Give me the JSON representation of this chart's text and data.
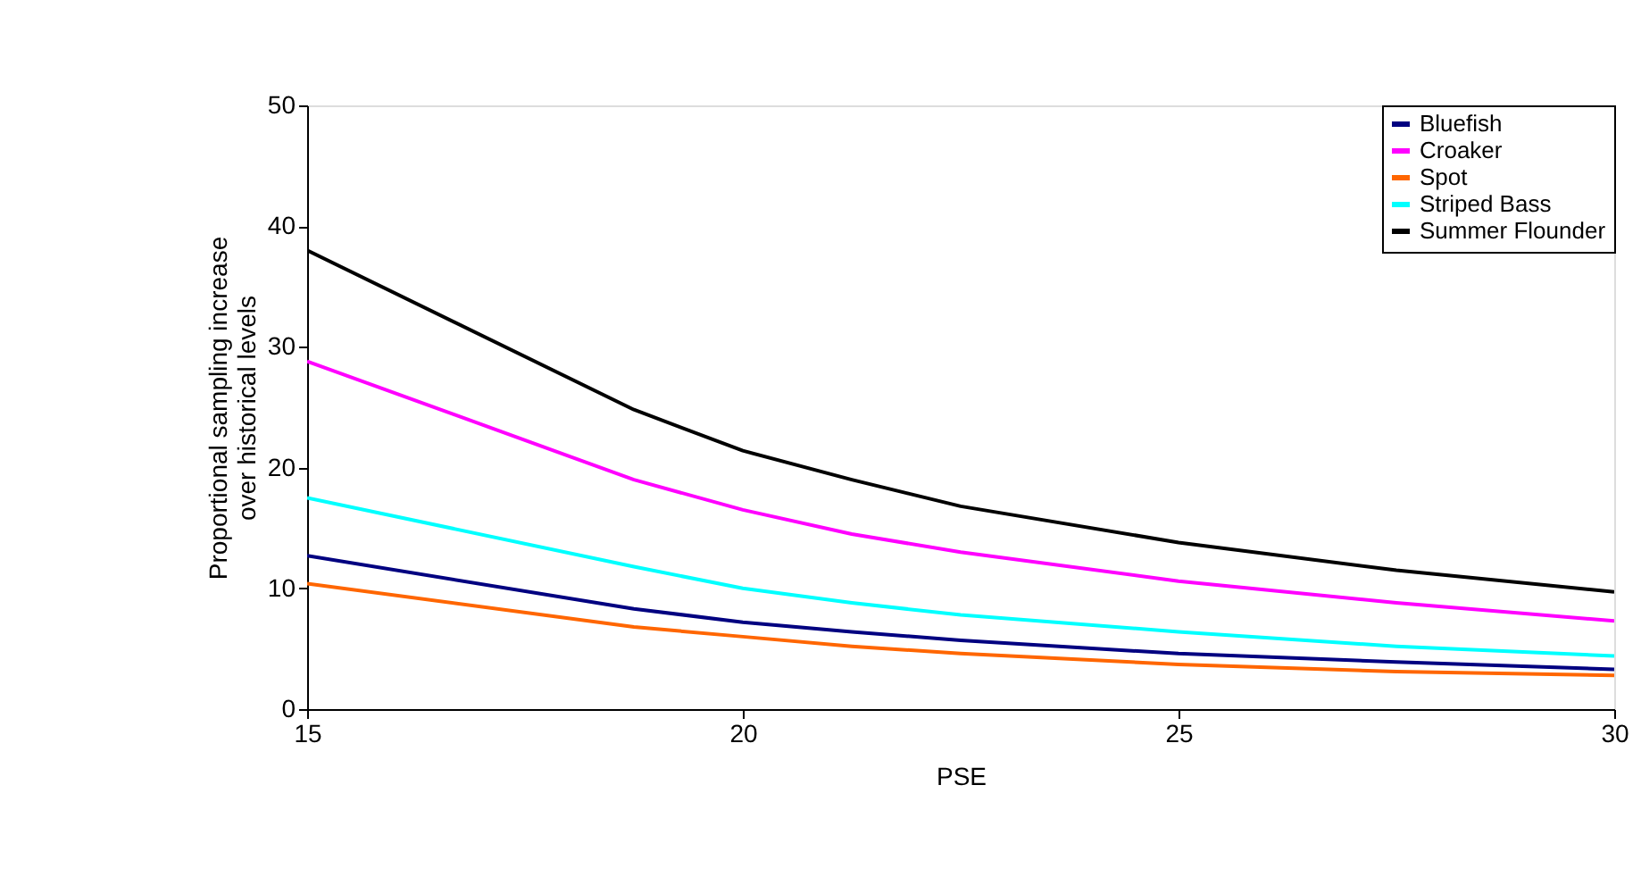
{
  "chart_data": {
    "type": "line",
    "xlabel": "PSE",
    "ylabel": "Proportional sampling increase over historical levels",
    "x": [
      15,
      18.75,
      20,
      21.25,
      22.5,
      25,
      27.5,
      30
    ],
    "series": [
      {
        "name": "Bluefish",
        "color": "#000080",
        "values": [
          12.7,
          8.3,
          7.2,
          6.4,
          5.7,
          4.6,
          3.9,
          3.3
        ]
      },
      {
        "name": "Croaker",
        "color": "#ff00ff",
        "values": [
          28.8,
          19,
          16.5,
          14.5,
          13,
          10.6,
          8.8,
          7.3
        ]
      },
      {
        "name": "Spot",
        "color": "#ff6600",
        "values": [
          10.4,
          6.8,
          6,
          5.2,
          4.6,
          3.7,
          3.1,
          2.8
        ]
      },
      {
        "name": "Striped Bass",
        "color": "#00ffff",
        "values": [
          17.5,
          11.8,
          10,
          8.8,
          7.8,
          6.4,
          5.2,
          4.4
        ]
      },
      {
        "name": "Summer Flounder",
        "color": "#000000",
        "values": [
          38,
          24.8,
          21.4,
          19,
          16.8,
          13.8,
          11.5,
          9.7
        ]
      }
    ],
    "xlim": [
      15,
      30
    ],
    "xticks": [
      15,
      20,
      25,
      30
    ],
    "ylim": [
      0,
      50
    ],
    "yticks": [
      0,
      10,
      20,
      30,
      40,
      50
    ],
    "grid": false,
    "legend": "top right",
    "marker": "none",
    "line_style": "solid"
  }
}
